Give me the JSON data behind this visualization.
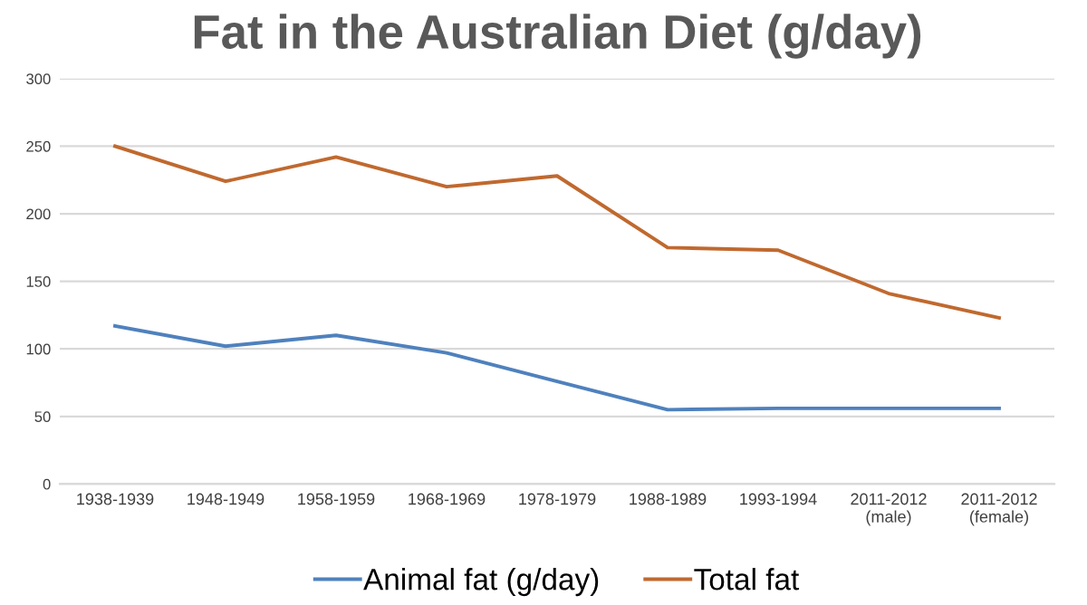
{
  "chart_data": {
    "type": "line",
    "title": "Fat in the Australian Diet (g/day)",
    "categories": [
      "1938-1939",
      "1948-1949",
      "1958-1959",
      "1968-1969",
      "1978-1979",
      "1988-1989",
      "1993-1994",
      "2011-2012\n(male)",
      "2011-2012\n(female)"
    ],
    "series": [
      {
        "name": "Animal fat (g/day)",
        "color": "#4f81bd",
        "values": [
          117,
          102,
          110,
          97,
          76,
          55,
          56,
          56,
          56
        ]
      },
      {
        "name": "Total fat",
        "color": "#c0692f",
        "values": [
          250,
          224,
          242,
          220,
          228,
          175,
          173,
          141,
          123
        ]
      }
    ],
    "ylim": [
      0,
      300
    ],
    "yticks": [
      0,
      50,
      100,
      150,
      200,
      250,
      300
    ],
    "grid": "y",
    "legend": "bottom",
    "marker": "none",
    "line_style": "solid"
  }
}
